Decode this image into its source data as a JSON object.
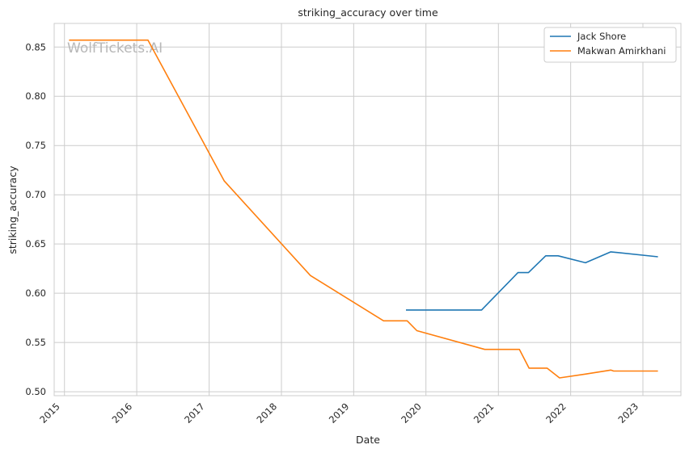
{
  "chart_data": {
    "type": "line",
    "title": "striking_accuracy over time",
    "xlabel": "Date",
    "ylabel": "striking_accuracy",
    "watermark": "WolfTickets.AI",
    "x_ticks": [
      "2015",
      "2016",
      "2017",
      "2018",
      "2019",
      "2020",
      "2021",
      "2022",
      "2023"
    ],
    "y_ticks": [
      "0.50",
      "0.55",
      "0.60",
      "0.65",
      "0.70",
      "0.75",
      "0.80",
      "0.85"
    ],
    "xlim": [
      "2014-11-10",
      "2023-07-12"
    ],
    "ylim": [
      0.496,
      0.874
    ],
    "grid": true,
    "legend_position": "top-right",
    "series": [
      {
        "name": "Jack Shore",
        "color": "#1f77b4",
        "points": [
          [
            "2019-09-22",
            0.583
          ],
          [
            "2020-10-08",
            0.583
          ],
          [
            "2021-04-10",
            0.621
          ],
          [
            "2021-06-02",
            0.621
          ],
          [
            "2021-08-28",
            0.638
          ],
          [
            "2021-10-30",
            0.638
          ],
          [
            "2022-03-17",
            0.631
          ],
          [
            "2022-07-23",
            0.642
          ],
          [
            "2023-03-18",
            0.637
          ]
        ]
      },
      {
        "name": "Makwan Amirkhani",
        "color": "#ff7f0e",
        "points": [
          [
            "2015-01-24",
            0.857
          ],
          [
            "2016-02-27",
            0.857
          ],
          [
            "2017-03-18",
            0.714
          ],
          [
            "2018-05-27",
            0.618
          ],
          [
            "2019-06-01",
            0.572
          ],
          [
            "2019-09-28",
            0.572
          ],
          [
            "2019-11-16",
            0.562
          ],
          [
            "2020-10-24",
            0.543
          ],
          [
            "2021-04-17",
            0.543
          ],
          [
            "2021-06-05",
            0.524
          ],
          [
            "2021-09-04",
            0.524
          ],
          [
            "2021-11-06",
            0.514
          ],
          [
            "2022-03-19",
            0.518
          ],
          [
            "2022-07-23",
            0.522
          ],
          [
            "2022-08-06",
            0.521
          ],
          [
            "2023-03-18",
            0.521
          ]
        ]
      }
    ]
  }
}
